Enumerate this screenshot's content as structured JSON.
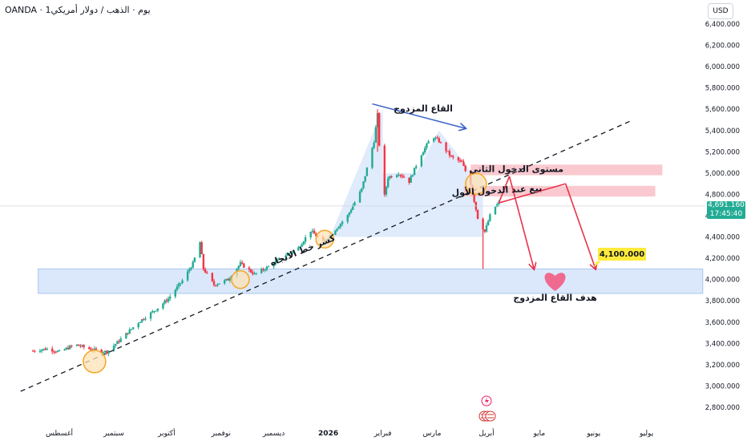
{
  "header": {
    "title": "OANDA · 1يوم · الذهب / دولار أمريكي"
  },
  "currency": "USD",
  "price_tag": {
    "price": "4,691.160",
    "countdown": "17:45:40"
  },
  "chart_data": {
    "type": "candlestick",
    "y_axis_ticks": [
      "6,400.000",
      "6,200.000",
      "6,000.000",
      "5,800.000",
      "5,600.000",
      "5,400.000",
      "5,200.000",
      "5,000.000",
      "4,800.000",
      "4,600.000",
      "4,400.000",
      "4,200.000",
      "4,000.000",
      "3,800.000",
      "3,600.000",
      "3,400.000",
      "3,200.000",
      "3,000.000",
      "2,800.000"
    ],
    "x_axis_ticks": [
      "أغسطس",
      "سبتمبر",
      "أكتوبر",
      "نوفمبر",
      "ديسمبر",
      "2026",
      "فبراير",
      "مارس",
      "أبريل",
      "مايو",
      "يونيو",
      "يوليو"
    ],
    "ylim": [
      2700,
      6500
    ],
    "close_path": [
      [
        "2025-07-17",
        3330
      ],
      [
        "2025-07-25",
        3350
      ],
      [
        "2025-08-01",
        3320
      ],
      [
        "2025-08-10",
        3390
      ],
      [
        "2025-08-20",
        3340
      ],
      [
        "2025-08-28",
        3320
      ],
      [
        "2025-09-05",
        3440
      ],
      [
        "2025-09-15",
        3600
      ],
      [
        "2025-09-25",
        3720
      ],
      [
        "2025-10-02",
        3820
      ],
      [
        "2025-10-10",
        3990
      ],
      [
        "2025-10-16",
        4150
      ],
      [
        "2025-10-20",
        4350
      ],
      [
        "2025-10-22",
        4100
      ],
      [
        "2025-10-28",
        3950
      ],
      [
        "2025-11-05",
        4000
      ],
      [
        "2025-11-12",
        4150
      ],
      [
        "2025-11-20",
        4050
      ],
      [
        "2025-11-28",
        4120
      ],
      [
        "2025-12-05",
        4200
      ],
      [
        "2025-12-15",
        4300
      ],
      [
        "2025-12-22",
        4460
      ],
      [
        "2025-12-29",
        4350
      ],
      [
        "2026-01-05",
        4470
      ],
      [
        "2026-01-12",
        4600
      ],
      [
        "2026-01-20",
        4850
      ],
      [
        "2026-01-27",
        5300
      ],
      [
        "2026-01-29",
        5550
      ],
      [
        "2026-02-01",
        4700
      ],
      [
        "2026-02-04",
        4960
      ],
      [
        "2026-02-10",
        5000
      ],
      [
        "2026-02-16",
        4920
      ],
      [
        "2026-02-22",
        5150
      ],
      [
        "2026-03-01",
        5350
      ],
      [
        "2026-03-05",
        5300
      ],
      [
        "2026-03-12",
        5150
      ],
      [
        "2026-03-18",
        5100
      ],
      [
        "2026-03-23",
        4900
      ],
      [
        "2026-03-27",
        4580
      ],
      [
        "2026-03-31",
        4450
      ],
      [
        "2026-04-04",
        4650
      ],
      [
        "2026-04-08",
        4720
      ]
    ],
    "forecast_path": [
      [
        "2026-04-08",
        4720
      ],
      [
        "2026-04-14",
        4970
      ],
      [
        "2026-04-28",
        4100
      ],
      [
        "2026-05-16",
        4900
      ],
      [
        "2026-06-02",
        4100
      ]
    ],
    "trendline": [
      [
        "2025-07-10",
        2950
      ],
      [
        "2026-06-22",
        5490
      ]
    ],
    "zones": {
      "second_entry": [
        4980,
        5080
      ],
      "first_entry": [
        4780,
        4880
      ],
      "target_zone": [
        3870,
        4100
      ]
    },
    "target_price": "4,100.000",
    "annotations": {
      "double_top": "القاع المزدوج",
      "second_entry": "مستوى الدخول الثاني",
      "first_entry": "بيع عند الدخول الأول",
      "trend_break": "كسر خط الاتجاه",
      "target": "هدف القاع المزدوج"
    },
    "grid": false,
    "colors": {
      "up": "#22ab94",
      "down": "#f23645",
      "zone_blue": "#dbe8fb",
      "zone_red": "#f9c9cf",
      "arrow_blue": "#3a62c8",
      "forecast_red": "#e8334a",
      "circle": "#f5a623",
      "heart": "#f06a8f"
    }
  }
}
